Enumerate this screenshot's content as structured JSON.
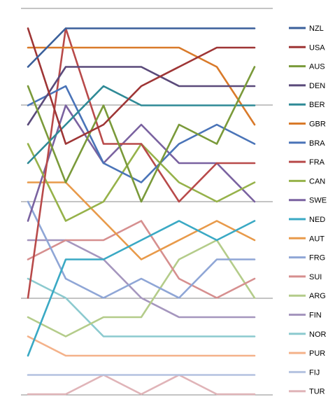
{
  "chart_data": {
    "type": "line",
    "title": "",
    "xlabel": "",
    "ylabel": "",
    "x": [
      1,
      2,
      3,
      4,
      5,
      6,
      7
    ],
    "ylim": [
      1,
      20
    ],
    "grid": true,
    "legend_position": "right",
    "series": [
      {
        "name": "NZL",
        "color": "#3a5f9a",
        "values": [
          3,
          1,
          1,
          1,
          1,
          1,
          1
        ]
      },
      {
        "name": "USA",
        "color": "#9e3535",
        "values": [
          1,
          7,
          6,
          4,
          3,
          2,
          2
        ]
      },
      {
        "name": "AUS",
        "color": "#7a9a3a",
        "values": [
          4,
          9,
          5,
          10,
          6,
          7,
          3
        ]
      },
      {
        "name": "DEN",
        "color": "#5a4a7a",
        "values": [
          6,
          3,
          3,
          3,
          4,
          4,
          4
        ]
      },
      {
        "name": "BER",
        "color": "#2f8a96",
        "values": [
          8,
          6,
          4,
          5,
          5,
          5,
          5
        ]
      },
      {
        "name": "GBR",
        "color": "#d97a2a",
        "values": [
          2,
          2,
          2,
          2,
          2,
          3,
          6
        ]
      },
      {
        "name": "BRA",
        "color": "#4a74b8",
        "values": [
          5,
          4,
          8,
          9,
          7,
          6,
          7
        ]
      },
      {
        "name": "FRA",
        "color": "#b84a4a",
        "values": [
          15,
          1,
          7,
          7,
          10,
          8,
          8
        ]
      },
      {
        "name": "CAN",
        "color": "#96b24a",
        "values": [
          7,
          11,
          10,
          7,
          9,
          10,
          9
        ]
      },
      {
        "name": "SWE",
        "color": "#7a62a0",
        "values": [
          11,
          5,
          8,
          6,
          8,
          8,
          10
        ]
      },
      {
        "name": "NED",
        "color": "#3aa9c4",
        "values": [
          18,
          13,
          13,
          12,
          11,
          12,
          11
        ]
      },
      {
        "name": "AUT",
        "color": "#e89a4a",
        "values": [
          9,
          9,
          11,
          13,
          12,
          11,
          12
        ]
      },
      {
        "name": "FRG",
        "color": "#8fa6d6",
        "values": [
          10,
          14,
          15,
          14,
          15,
          13,
          13
        ]
      },
      {
        "name": "SUI",
        "color": "#d68f8f",
        "values": [
          13,
          12,
          12,
          11,
          14,
          15,
          14
        ]
      },
      {
        "name": "ARG",
        "color": "#b4cc8a",
        "values": [
          16,
          17,
          16,
          16,
          13,
          12,
          15
        ]
      },
      {
        "name": "FIN",
        "color": "#a596be",
        "values": [
          12,
          12,
          13,
          15,
          16,
          16,
          16
        ]
      },
      {
        "name": "NOR",
        "color": "#8ccacf",
        "values": [
          14,
          15,
          17,
          17,
          17,
          17,
          17
        ]
      },
      {
        "name": "PUR",
        "color": "#f4b28a",
        "values": [
          17,
          18,
          18,
          18,
          18,
          18,
          18
        ]
      },
      {
        "name": "FIJ",
        "color": "#b4c2e0",
        "values": [
          19,
          19,
          19,
          19,
          19,
          19,
          19
        ]
      },
      {
        "name": "TUR",
        "color": "#e0b4b8",
        "values": [
          20,
          20,
          19,
          20,
          19,
          20,
          20
        ]
      }
    ]
  }
}
